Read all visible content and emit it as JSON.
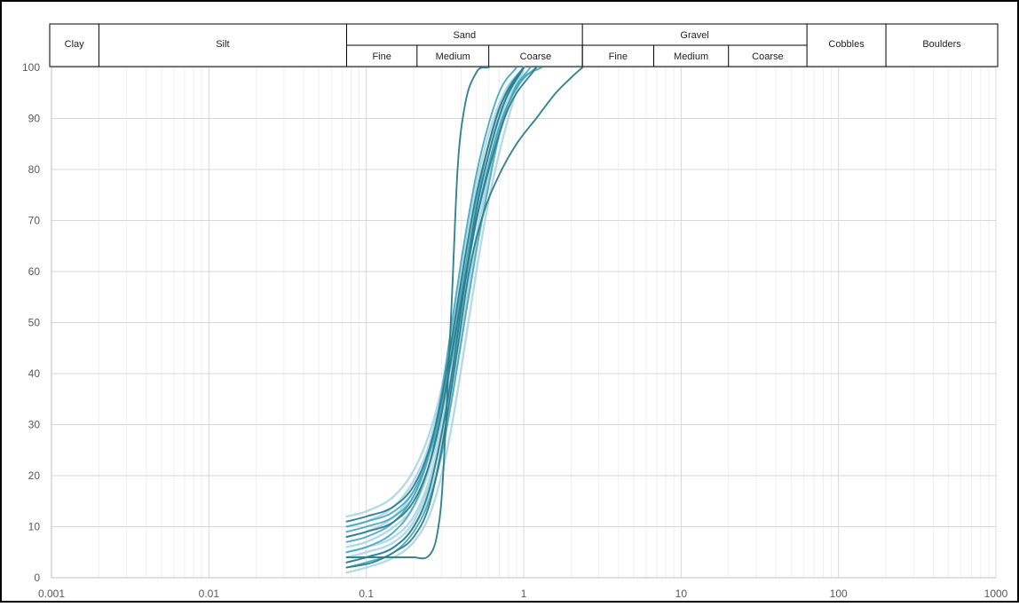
{
  "chart_data": {
    "type": "line",
    "title": "",
    "xlabel": "",
    "ylabel": "",
    "x_scale": "log",
    "xlim": [
      0.001,
      1000
    ],
    "ylim": [
      0,
      100
    ],
    "grid": true,
    "x_ticks": [
      {
        "value": 0.001,
        "label": "0.001"
      },
      {
        "value": 0.01,
        "label": "0.01"
      },
      {
        "value": 0.1,
        "label": "0.1"
      },
      {
        "value": 1,
        "label": "1"
      },
      {
        "value": 10,
        "label": "10"
      },
      {
        "value": 100,
        "label": "100"
      },
      {
        "value": 1000,
        "label": "1000"
      }
    ],
    "y_ticks": [
      {
        "value": 0,
        "label": "0"
      },
      {
        "value": 10,
        "label": "10"
      },
      {
        "value": 20,
        "label": "20"
      },
      {
        "value": 30,
        "label": "30"
      },
      {
        "value": 40,
        "label": "40"
      },
      {
        "value": 50,
        "label": "50"
      },
      {
        "value": 60,
        "label": "60"
      },
      {
        "value": 70,
        "label": "70"
      },
      {
        "value": 80,
        "label": "80"
      },
      {
        "value": 90,
        "label": "90"
      },
      {
        "value": 100,
        "label": "100"
      }
    ],
    "classification_top": [
      {
        "label": "Clay",
        "from": 0.001,
        "to": 0.002
      },
      {
        "label": "Silt",
        "from": 0.002,
        "to": 0.075
      },
      {
        "label": "Sand",
        "from": 0.075,
        "to": 2.36
      },
      {
        "label": "Gravel",
        "from": 2.36,
        "to": 63
      },
      {
        "label": "Cobbles",
        "from": 63,
        "to": 200
      },
      {
        "label": "Boulders",
        "from": 200,
        "to": 1000
      }
    ],
    "classification_sub": [
      {
        "label": "Fine",
        "from": 0.075,
        "to": 0.21
      },
      {
        "label": "Medium",
        "from": 0.21,
        "to": 0.6
      },
      {
        "label": "Coarse",
        "from": 0.6,
        "to": 2.36
      },
      {
        "label": "Fine",
        "from": 2.36,
        "to": 6.7
      },
      {
        "label": "Medium",
        "from": 6.7,
        "to": 20
      },
      {
        "label": "Coarse",
        "from": 20,
        "to": 63
      }
    ],
    "colors": {
      "dark": "#2a7d8c",
      "mid": "#4aa9c0",
      "light": "#a8d4e2",
      "grid_major": "#d8d8d8",
      "grid_minor": "#efefef",
      "border": "#000000"
    },
    "series": [
      {
        "shade": "dark",
        "x": [
          0.075,
          0.15,
          0.2,
          0.26,
          0.28,
          0.3,
          0.32,
          0.35,
          0.38,
          0.42,
          0.5,
          0.55,
          0.6
        ],
        "y": [
          4,
          4,
          4,
          5,
          8,
          15,
          30,
          55,
          80,
          92,
          99,
          100,
          100
        ]
      },
      {
        "shade": "dark",
        "x": [
          0.075,
          0.11,
          0.15,
          0.2,
          0.25,
          0.3,
          0.38,
          0.45,
          0.55,
          0.7,
          0.9,
          1.2,
          1.6,
          2.0,
          2.36
        ],
        "y": [
          2,
          3,
          5,
          8,
          14,
          25,
          45,
          60,
          71,
          79,
          85,
          90,
          95,
          98,
          100
        ]
      },
      {
        "shade": "dark",
        "x": [
          0.075,
          0.1,
          0.15,
          0.2,
          0.25,
          0.3,
          0.35,
          0.42,
          0.5,
          0.6,
          0.7,
          0.85,
          1.0
        ],
        "y": [
          11,
          12,
          14,
          18,
          25,
          35,
          47,
          62,
          75,
          85,
          92,
          97,
          100
        ]
      },
      {
        "shade": "dark",
        "x": [
          0.075,
          0.1,
          0.15,
          0.2,
          0.25,
          0.3,
          0.35,
          0.42,
          0.5,
          0.6,
          0.75,
          1.0
        ],
        "y": [
          3,
          4,
          6,
          10,
          17,
          28,
          40,
          57,
          72,
          83,
          93,
          100
        ]
      },
      {
        "shade": "dark",
        "x": [
          0.075,
          0.1,
          0.15,
          0.2,
          0.25,
          0.3,
          0.35,
          0.42,
          0.5,
          0.6,
          0.8,
          1.2
        ],
        "y": [
          8,
          9,
          11,
          15,
          22,
          32,
          44,
          58,
          70,
          80,
          92,
          100
        ]
      },
      {
        "shade": "mid",
        "x": [
          0.075,
          0.1,
          0.15,
          0.2,
          0.25,
          0.3,
          0.38,
          0.45,
          0.55,
          0.65,
          0.8,
          1.0,
          1.3
        ],
        "y": [
          7,
          8,
          11,
          16,
          24,
          34,
          50,
          63,
          76,
          85,
          93,
          98,
          100
        ]
      },
      {
        "shade": "mid",
        "x": [
          0.075,
          0.1,
          0.15,
          0.2,
          0.25,
          0.3,
          0.35,
          0.42,
          0.5,
          0.6,
          0.75,
          0.95,
          1.2
        ],
        "y": [
          10,
          11,
          13,
          17,
          24,
          33,
          43,
          57,
          70,
          81,
          91,
          97,
          100
        ]
      },
      {
        "shade": "mid",
        "x": [
          0.075,
          0.1,
          0.15,
          0.2,
          0.25,
          0.3,
          0.35,
          0.4,
          0.48,
          0.55,
          0.65,
          0.8,
          1.0
        ],
        "y": [
          5,
          6,
          9,
          14,
          22,
          33,
          45,
          56,
          70,
          80,
          89,
          96,
          100
        ]
      },
      {
        "shade": "mid",
        "x": [
          0.075,
          0.1,
          0.15,
          0.2,
          0.25,
          0.3,
          0.35,
          0.42,
          0.5,
          0.6,
          0.7,
          0.85,
          1.1
        ],
        "y": [
          2,
          3,
          5,
          9,
          15,
          24,
          35,
          50,
          64,
          77,
          87,
          95,
          100
        ]
      },
      {
        "shade": "mid",
        "x": [
          0.075,
          0.1,
          0.15,
          0.2,
          0.25,
          0.3,
          0.35,
          0.42,
          0.5,
          0.6,
          0.72,
          0.9
        ],
        "y": [
          9,
          10,
          12,
          16,
          24,
          36,
          50,
          66,
          79,
          89,
          96,
          100
        ]
      },
      {
        "shade": "light",
        "x": [
          0.075,
          0.1,
          0.15,
          0.2,
          0.25,
          0.3,
          0.35,
          0.42,
          0.5,
          0.6,
          0.75,
          1.0
        ],
        "y": [
          12,
          13,
          16,
          21,
          28,
          37,
          48,
          62,
          74,
          84,
          93,
          100
        ]
      },
      {
        "shade": "light",
        "x": [
          0.075,
          0.1,
          0.15,
          0.2,
          0.25,
          0.3,
          0.35,
          0.42,
          0.5,
          0.6,
          0.75,
          1.0
        ],
        "y": [
          6,
          7,
          10,
          14,
          21,
          31,
          43,
          58,
          72,
          83,
          93,
          100
        ]
      },
      {
        "shade": "light",
        "x": [
          0.075,
          0.1,
          0.15,
          0.2,
          0.25,
          0.3,
          0.35,
          0.42,
          0.5,
          0.6,
          0.75,
          1.0
        ],
        "y": [
          4,
          5,
          7,
          11,
          18,
          27,
          38,
          53,
          67,
          79,
          90,
          100
        ]
      },
      {
        "shade": "light",
        "x": [
          0.075,
          0.1,
          0.15,
          0.2,
          0.25,
          0.3,
          0.35,
          0.42,
          0.5,
          0.6,
          0.75,
          1.0
        ],
        "y": [
          1,
          2,
          4,
          7,
          12,
          20,
          30,
          45,
          60,
          74,
          87,
          100
        ]
      },
      {
        "shade": "light",
        "x": [
          0.075,
          0.1,
          0.15,
          0.2,
          0.25,
          0.3,
          0.35,
          0.42,
          0.5,
          0.6,
          0.75,
          1.0
        ],
        "y": [
          8,
          9,
          12,
          17,
          25,
          36,
          48,
          64,
          77,
          87,
          95,
          100
        ]
      },
      {
        "shade": "light",
        "x": [
          0.075,
          0.1,
          0.15,
          0.2,
          0.25,
          0.3,
          0.35,
          0.42,
          0.5,
          0.6,
          0.75,
          1.0
        ],
        "y": [
          3,
          4,
          6,
          10,
          16,
          25,
          36,
          51,
          66,
          78,
          90,
          100
        ]
      },
      {
        "shade": "light",
        "x": [
          0.075,
          0.1,
          0.15,
          0.2,
          0.25,
          0.3,
          0.35,
          0.42,
          0.5,
          0.6,
          0.75,
          1.0
        ],
        "y": [
          10,
          11,
          14,
          19,
          26,
          36,
          47,
          62,
          75,
          85,
          94,
          100
        ]
      },
      {
        "shade": "light",
        "x": [
          0.075,
          0.1,
          0.15,
          0.2,
          0.25,
          0.3,
          0.35,
          0.42,
          0.5,
          0.6,
          0.75,
          1.0
        ],
        "y": [
          5,
          6,
          8,
          12,
          19,
          29,
          41,
          56,
          70,
          81,
          92,
          100
        ]
      }
    ]
  }
}
